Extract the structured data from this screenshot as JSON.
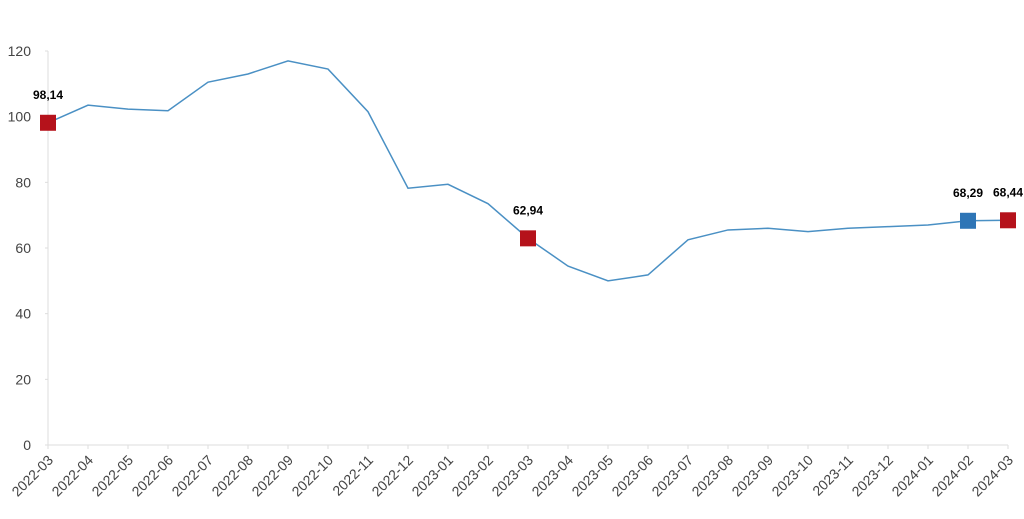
{
  "chart_data": {
    "type": "line",
    "categories": [
      "2022-03",
      "2022-04",
      "2022-05",
      "2022-06",
      "2022-07",
      "2022-08",
      "2022-09",
      "2022-10",
      "2022-11",
      "2022-12",
      "2023-01",
      "2023-02",
      "2023-03",
      "2023-04",
      "2023-05",
      "2023-06",
      "2023-07",
      "2023-08",
      "2023-09",
      "2023-10",
      "2023-11",
      "2023-12",
      "2024-01",
      "2024-02",
      "2024-03"
    ],
    "values": [
      98.14,
      103.5,
      102.3,
      101.8,
      110.5,
      113,
      117,
      114.5,
      101.5,
      78.2,
      79.4,
      73.5,
      62.94,
      54.5,
      50,
      51.8,
      62.5,
      65.5,
      66,
      65,
      66,
      66.5,
      67,
      68.29,
      68.44
    ],
    "value_labels": [
      "98,14",
      null,
      null,
      null,
      null,
      null,
      null,
      null,
      null,
      null,
      null,
      null,
      "62,94",
      null,
      null,
      null,
      null,
      null,
      null,
      null,
      null,
      null,
      null,
      "68,29",
      "68,44"
    ],
    "marker_colors": [
      "#b5121b",
      null,
      null,
      null,
      null,
      null,
      null,
      null,
      null,
      null,
      null,
      null,
      "#b5121b",
      null,
      null,
      null,
      null,
      null,
      null,
      null,
      null,
      null,
      null,
      "#2e75b6",
      "#b5121b"
    ],
    "color": "#4a90c4",
    "ylim": [
      0,
      120
    ],
    "yticks": [
      0,
      20,
      40,
      60,
      80,
      100,
      120
    ]
  }
}
